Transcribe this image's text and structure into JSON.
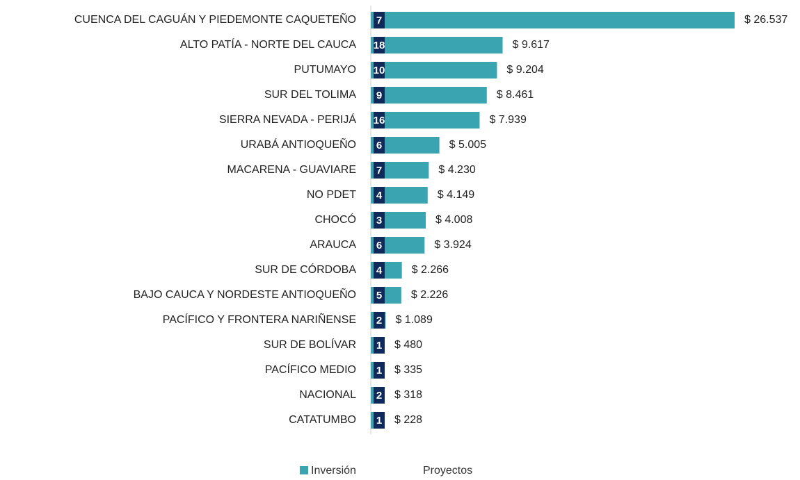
{
  "chart_data": {
    "type": "bar",
    "orientation": "horizontal",
    "categories": [
      "CUENCA DEL CAGUÁN Y PIEDEMONTE CAQUETEÑO",
      "ALTO PATÍA - NORTE DEL CAUCA",
      "PUTUMAYO",
      "SUR DEL TOLIMA",
      "SIERRA NEVADA - PERIJÁ",
      "URABÁ ANTIOQUEÑO",
      "MACARENA - GUAVIARE",
      "NO PDET",
      "CHOCÓ",
      "ARAUCA",
      "SUR DE CÓRDOBA",
      "BAJO CAUCA Y NORDESTE ANTIOQUEÑO",
      "PACÍFICO Y FRONTERA NARIÑENSE",
      "SUR DE BOLÍVAR",
      "PACÍFICO MEDIO",
      "NACIONAL",
      "CATATUMBO"
    ],
    "series": [
      {
        "name": "Inversión",
        "color": "#3aa5b0",
        "values": [
          26537,
          9617,
          9204,
          8461,
          7939,
          5005,
          4230,
          4149,
          4008,
          3924,
          2266,
          2226,
          1089,
          480,
          335,
          318,
          228
        ],
        "value_labels": [
          "$ 26.537",
          "$ 9.617",
          "$ 9.204",
          "$ 8.461",
          "$ 7.939",
          "$ 5.005",
          "$ 4.230",
          "$ 4.149",
          "$ 4.008",
          "$ 3.924",
          "$ 2.266",
          "$ 2.226",
          "$ 1.089",
          "$ 480",
          "$ 335",
          "$ 318",
          "$ 228"
        ]
      },
      {
        "name": "Proyectos",
        "color": "#0f2a5a",
        "values": [
          7,
          18,
          10,
          9,
          16,
          6,
          7,
          4,
          3,
          6,
          4,
          5,
          2,
          1,
          1,
          2,
          1
        ]
      }
    ],
    "legend": "bottom"
  }
}
